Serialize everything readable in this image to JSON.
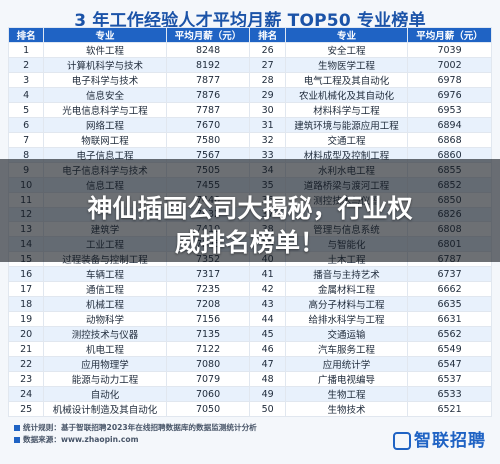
{
  "title": "3 年工作经验人才平均月薪 TOP50 专业榜单",
  "columns": [
    "排名",
    "专业",
    "平均月薪（元）",
    "排名",
    "专业",
    "平均月薪（元）"
  ],
  "rows": [
    [
      "1",
      "软件工程",
      "8248",
      "26",
      "安全工程",
      "7039"
    ],
    [
      "2",
      "计算机科学与技术",
      "8192",
      "27",
      "生物医学工程",
      "7002"
    ],
    [
      "3",
      "电子科学与技术",
      "7877",
      "28",
      "电气工程及其自动化",
      "6978"
    ],
    [
      "4",
      "信息安全",
      "7876",
      "29",
      "农业机械化及其自动化",
      "6976"
    ],
    [
      "5",
      "光电信息科学与工程",
      "7787",
      "30",
      "材料科学与工程",
      "6953"
    ],
    [
      "6",
      "网络工程",
      "7670",
      "31",
      "建筑环境与能源应用工程",
      "6894"
    ],
    [
      "7",
      "物联网工程",
      "7580",
      "32",
      "交通工程",
      "6868"
    ],
    [
      "8",
      "电子信息工程",
      "7567",
      "33",
      "材料成型及控制工程",
      "6860"
    ],
    [
      "9",
      "电子信息科学与技术",
      "7505",
      "34",
      "水利水电工程",
      "6855"
    ],
    [
      "10",
      "信息工程",
      "7455",
      "35",
      "道路桥梁与渡河工程",
      "6852"
    ],
    [
      "11",
      "",
      "7440",
      "36",
      "测控技术与仪器",
      "6850"
    ],
    [
      "12",
      "",
      "7432",
      "37",
      "",
      "6826"
    ],
    [
      "13",
      "建筑学",
      "7410",
      "38",
      "管理与信息系统",
      "6808"
    ],
    [
      "14",
      "工业工程",
      "7395",
      "39",
      "与智能化",
      "6801"
    ],
    [
      "15",
      "过程装备与控制工程",
      "7352",
      "40",
      "土木工程",
      "6787"
    ],
    [
      "16",
      "车辆工程",
      "7317",
      "41",
      "播音与主持艺术",
      "6737"
    ],
    [
      "17",
      "通信工程",
      "7235",
      "42",
      "金属材料工程",
      "6662"
    ],
    [
      "18",
      "机械工程",
      "7208",
      "43",
      "高分子材料与工程",
      "6635"
    ],
    [
      "19",
      "动物科学",
      "7156",
      "44",
      "给排水科学与工程",
      "6631"
    ],
    [
      "20",
      "测控技术与仪器",
      "7135",
      "45",
      "交通运输",
      "6562"
    ],
    [
      "21",
      "机电工程",
      "7122",
      "46",
      "汽车服务工程",
      "6549"
    ],
    [
      "22",
      "应用物理学",
      "7080",
      "47",
      "应用统计学",
      "6547"
    ],
    [
      "23",
      "能源与动力工程",
      "7079",
      "48",
      "广播电视编导",
      "6537"
    ],
    [
      "24",
      "自动化",
      "7060",
      "49",
      "生物工程",
      "6533"
    ],
    [
      "25",
      "机械设计制造及其自动化",
      "7050",
      "50",
      "生物技术",
      "6521"
    ]
  ],
  "notes": {
    "rule": "统计规则：基于智联招聘2023年在线招聘数据库的数据监测统计分析",
    "source": "数据来源：www.zhaopin.com"
  },
  "brand": "智联招聘",
  "headline": {
    "line1": "神仙插画公司大揭秘，行业权",
    "line2": "威排名榜单！"
  }
}
